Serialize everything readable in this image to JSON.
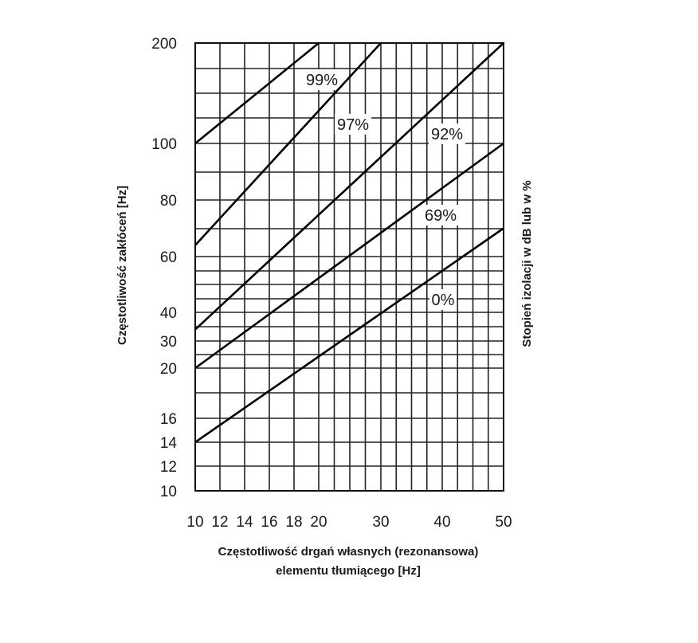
{
  "chart_data": {
    "type": "line",
    "xlabel_line1": "Częstotliwość drgań własnych (rezonansowa)",
    "xlabel_line2": "elementu tłumiącego [Hz]",
    "ylabel": "Częstotliwość zakłóceń [Hz]",
    "y2label": "Stopień izolacji w dB lub w %",
    "x_ticks": [
      "10",
      "12",
      "14",
      "16",
      "18",
      "20",
      "30",
      "40",
      "50"
    ],
    "y_ticks": [
      "10",
      "12",
      "14",
      "16",
      "20",
      "30",
      "40",
      "60",
      "80",
      "100",
      "200"
    ],
    "xlim": [
      10,
      50
    ],
    "ylim": [
      10,
      200
    ],
    "grid": true,
    "series": [
      {
        "name": "99%",
        "x": [
          10,
          20
        ],
        "y": [
          100,
          200
        ]
      },
      {
        "name": "97%",
        "x": [
          10,
          30
        ],
        "y": [
          64,
          200
        ]
      },
      {
        "name": "92%",
        "x": [
          10,
          50
        ],
        "y": [
          34,
          200
        ]
      },
      {
        "name": "69%",
        "x": [
          10,
          50
        ],
        "y": [
          20,
          100
        ]
      },
      {
        "name": "0%",
        "x": [
          10,
          50
        ],
        "y": [
          14,
          70
        ]
      }
    ]
  }
}
